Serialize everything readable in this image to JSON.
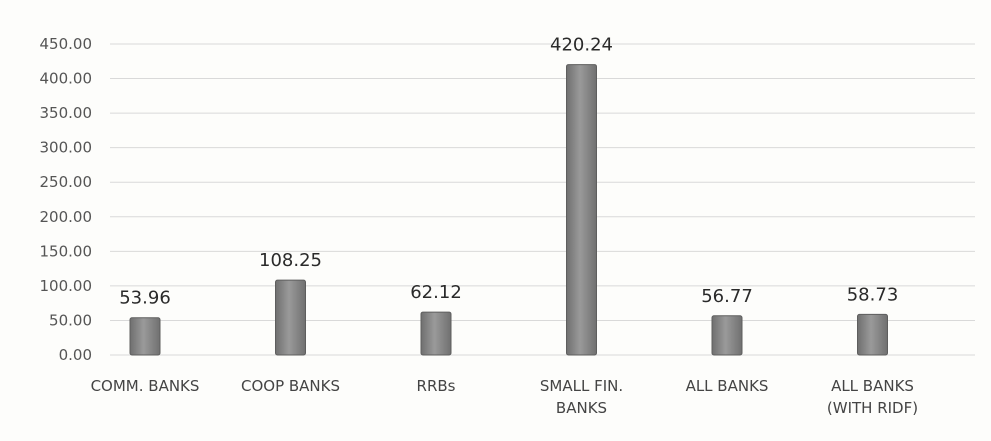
{
  "chart_data": {
    "type": "bar",
    "categories": [
      [
        "COMM. BANKS"
      ],
      [
        "COOP BANKS"
      ],
      [
        "RRBs"
      ],
      [
        "SMALL FIN.",
        "BANKS"
      ],
      [
        "ALL BANKS"
      ],
      [
        "ALL BANKS",
        "(WITH RIDF)"
      ]
    ],
    "values": [
      53.96,
      108.25,
      62.12,
      420.24,
      56.77,
      58.73
    ],
    "data_labels": [
      "53.96",
      "108.25",
      "62.12",
      "420.24",
      "56.77",
      "58.73"
    ],
    "ytick_labels": [
      "0.00",
      "50.00",
      "100.00",
      "150.00",
      "200.00",
      "250.00",
      "300.00",
      "350.00",
      "400.00",
      "450.00"
    ],
    "ylim": [
      0,
      450
    ],
    "grid": true,
    "legend": "none",
    "title": "",
    "xlabel": "",
    "ylabel": "",
    "colors": {
      "bar_fill": "#8a8a8a",
      "bar_edge": "#5e5e5e",
      "grid": "#d9d9d9",
      "background": "#fdfdfb"
    }
  }
}
